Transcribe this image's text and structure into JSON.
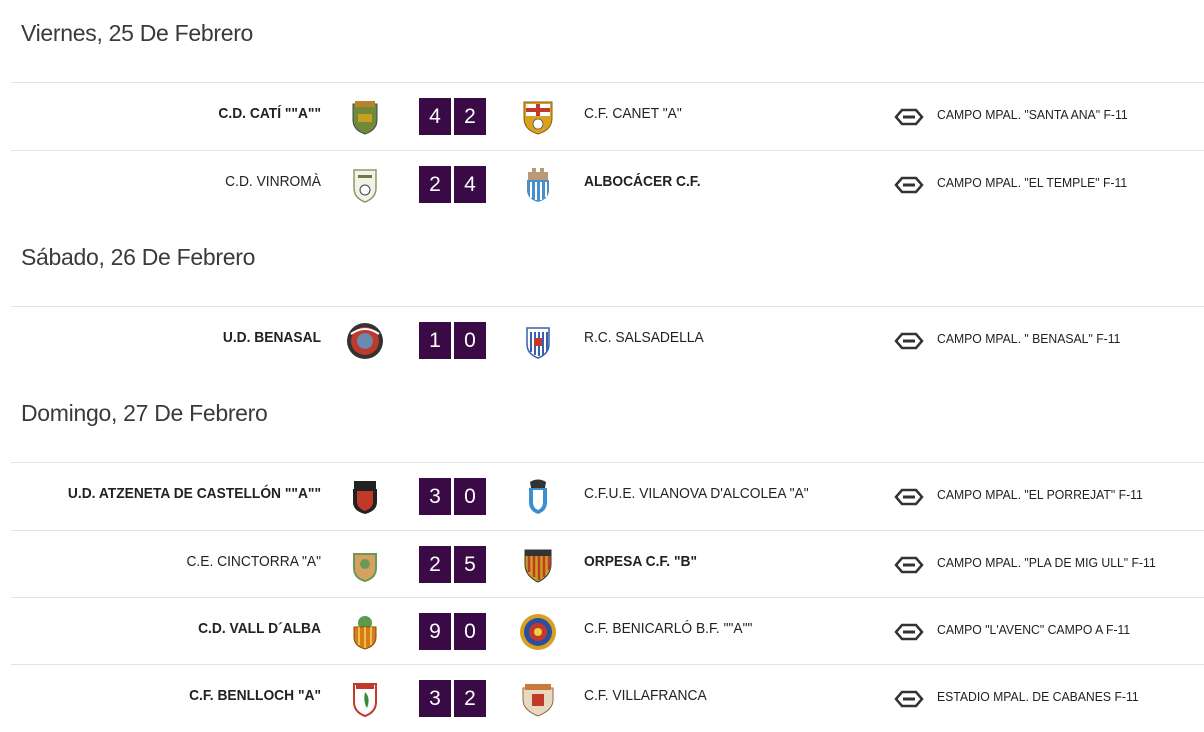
{
  "days": [
    {
      "title": "Viernes, 25 De Febrero",
      "matches": [
        {
          "home": "C.D. CATÍ \"\"A\"\"",
          "home_win": true,
          "home_score": "4",
          "away_score": "2",
          "away": "C.F. CANET \"A\"",
          "away_win": false,
          "venue": "CAMPO MPAL. \"SANTA ANA\" F-11",
          "home_crest_color": "#6f8b3a",
          "away_crest_color": "#d9a21e"
        },
        {
          "home": "C.D. VINROMÀ",
          "home_win": false,
          "home_score": "2",
          "away_score": "4",
          "away": "ALBOCÁCER C.F.",
          "away_win": true,
          "venue": "CAMPO MPAL. \"EL TEMPLE\" F-11",
          "home_crest_color": "#8a9a6a",
          "away_crest_color": "#4a90c8"
        }
      ]
    },
    {
      "title": "Sábado, 26 De Febrero",
      "matches": [
        {
          "home": "U.D. BENASAL",
          "home_win": true,
          "home_score": "1",
          "away_score": "0",
          "away": "R.C. SALSADELLA",
          "away_win": false,
          "venue": "CAMPO MPAL. \" BENASAL\" F-11",
          "home_crest_color": "#c0392b",
          "away_crest_color": "#3a5fb0"
        }
      ]
    },
    {
      "title": "Domingo, 27 De Febrero",
      "matches": [
        {
          "home": "U.D. ATZENETA DE CASTELLÓN \"\"A\"\"",
          "home_win": true,
          "home_score": "3",
          "away_score": "0",
          "away": "C.F.U.E. VILANOVA D'ALCOLEA \"A\"",
          "away_win": false,
          "venue": "CAMPO MPAL. \"EL PORREJAT\" F-11",
          "home_crest_color": "#c0392b",
          "away_crest_color": "#3a8fd0"
        },
        {
          "home": "C.E. CINCTORRA \"A\"",
          "home_win": false,
          "home_score": "2",
          "away_score": "5",
          "away": "ORPESA C.F. \"B\"",
          "away_win": true,
          "venue": "CAMPO MPAL. \"PLA DE MIG ULL\" F-11",
          "home_crest_color": "#6a9a5a",
          "away_crest_color": "#c8a020"
        },
        {
          "home": "C.D. VALL D´ALBA",
          "home_win": true,
          "home_score": "9",
          "away_score": "0",
          "away": "C.F. BENICARLÓ B.F. \"\"A\"\"",
          "away_win": false,
          "venue": "CAMPO \"L'AVENC\" CAMPO A F-11",
          "home_crest_color": "#d87a1e",
          "away_crest_color": "#2a4fa0"
        },
        {
          "home": "C.F. BENLLOCH \"A\"",
          "home_win": true,
          "home_score": "3",
          "away_score": "2",
          "away": "C.F. VILLAFRANCA",
          "away_win": false,
          "venue": "ESTADIO MPAL. DE CABANES F-11",
          "home_crest_color": "#c0392b",
          "away_crest_color": "#c87a3a"
        }
      ]
    }
  ]
}
